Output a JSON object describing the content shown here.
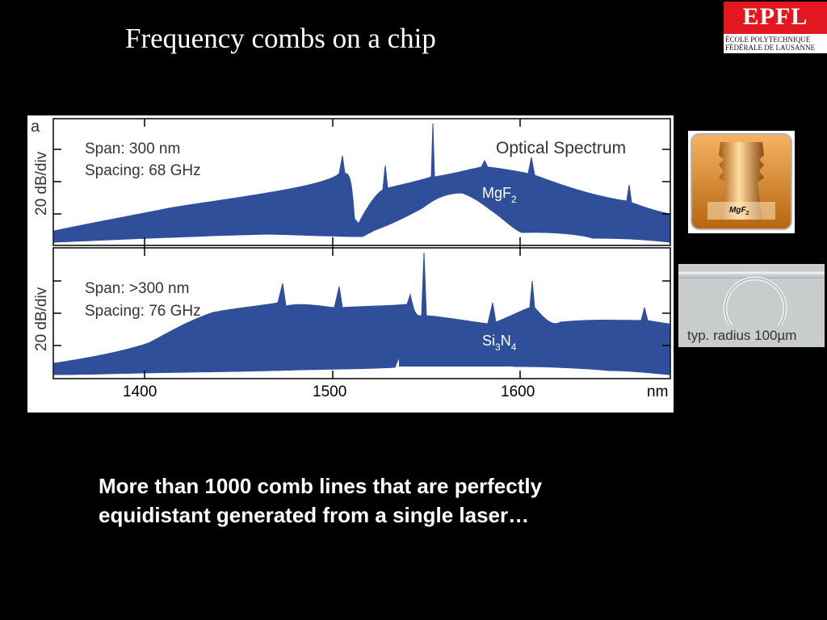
{
  "slide": {
    "title": "Frequency combs on a chip",
    "caption_line1": "More than 1000 comb lines that are perfectly",
    "caption_line2": "equidistant generated from a single laser…"
  },
  "logo": {
    "mark": "EPFL",
    "line1": "ÉCOLE POLYTECHNIQUE",
    "line2": "FÉDÉRALE DE LAUSANNE",
    "brand_color": "#e2171f"
  },
  "figure": {
    "panel_letter": "a",
    "colors": {
      "trace": "#2f4f9b",
      "axis": "#000000"
    },
    "top": {
      "ylabel": "20 dB/div",
      "span": "Span: 300 nm",
      "spacing": "Spacing: 68 GHz",
      "heading": "Optical Spectrum",
      "material": "MgF",
      "material_sub": "2"
    },
    "bottom": {
      "ylabel": "20 dB/div",
      "span": "Span: >300 nm",
      "spacing": "Spacing: 76 GHz",
      "material_a": "Si",
      "material_a_sub": "3",
      "material_b": "N",
      "material_b_sub": "4"
    },
    "x_ticks": [
      "1400",
      "1500",
      "1600"
    ],
    "x_unit": "nm"
  },
  "photos": {
    "mgf2_label": "MgF",
    "mgf2_sub": "2",
    "ring_label": "typ. radius 100µm"
  }
}
